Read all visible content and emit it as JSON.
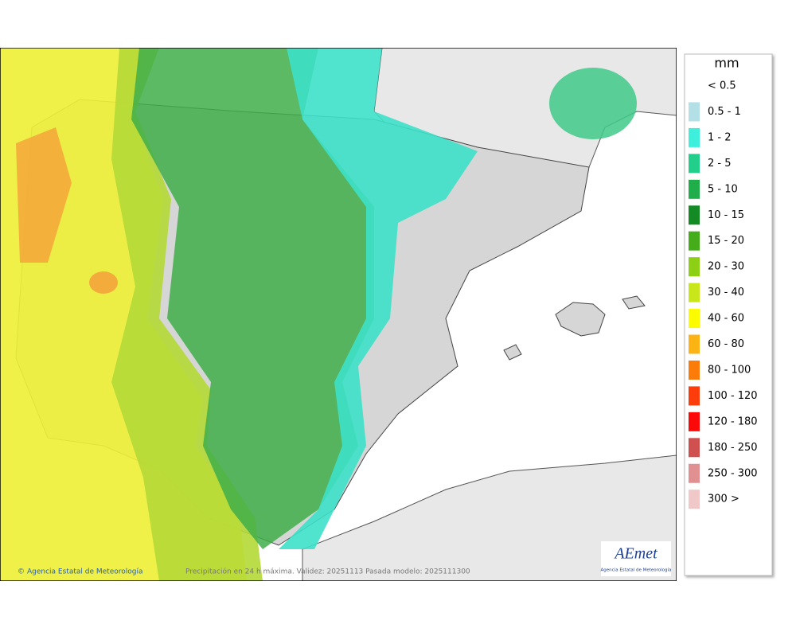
{
  "map": {
    "credit": "Agencia Estatal de Meteorología",
    "caption": "Precipitación en 24 h máxima. Validez: 20251113 Pasada modelo: 2025111300",
    "logo": {
      "name": "AEmet",
      "subtitle": "Agencia Estatal de Meteorología"
    }
  },
  "legend": {
    "unit": "mm",
    "items": [
      {
        "label": "< 0.5"
      },
      {
        "label": "0.5 - 1",
        "color": "#b3dfe6"
      },
      {
        "label": "1 - 2",
        "color": "#3ef0dc"
      },
      {
        "label": "2 - 5",
        "color": "#22cf8a"
      },
      {
        "label": "5 - 10",
        "color": "#1fae4a"
      },
      {
        "label": "10 - 15",
        "color": "#138a24"
      },
      {
        "label": "15 - 20",
        "color": "#45ad1a"
      },
      {
        "label": "20 - 30",
        "color": "#8ccf14"
      },
      {
        "label": "30 - 40",
        "color": "#c8e61a"
      },
      {
        "label": "40 - 60",
        "color": "#fcfc00"
      },
      {
        "label": "60 - 80",
        "color": "#fcb414"
      },
      {
        "label": "80 - 100",
        "color": "#fc7c0a"
      },
      {
        "label": "100 - 120",
        "color": "#fc3c0a"
      },
      {
        "label": "120 - 180",
        "color": "#fc0a0a"
      },
      {
        "label": "180 - 250",
        "color": "#d05050"
      },
      {
        "label": "250 - 300",
        "color": "#e09090"
      },
      {
        "label": "300 >",
        "color": "#f0c8c8"
      }
    ]
  }
}
